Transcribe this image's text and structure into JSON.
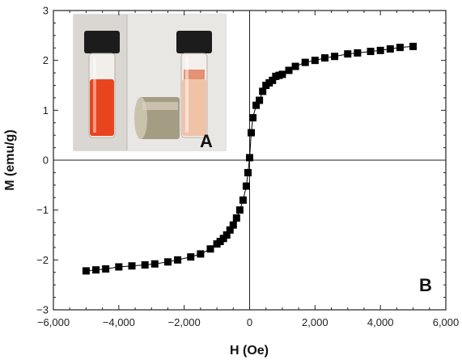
{
  "chart_data": {
    "type": "scatter",
    "xlabel": "H (Oe)",
    "ylabel": "M (emu/g)",
    "xlim": [
      -6000,
      6000
    ],
    "ylim": [
      -3,
      3
    ],
    "xticks": [
      -6000,
      -4000,
      -2000,
      0,
      2000,
      4000,
      6000
    ],
    "xtick_labels": [
      "−6,000",
      "−4,000",
      "−2,000",
      "0",
      "2,000",
      "4,000",
      "6,000"
    ],
    "yticks": [
      -3,
      -2,
      -1,
      0,
      1,
      2,
      3
    ],
    "ytick_labels": [
      "−3",
      "−2",
      "−1",
      "0",
      "1",
      "2",
      "3"
    ],
    "zero_lines": true,
    "marker": "square",
    "marker_color": "#000000",
    "series": [
      {
        "x": [
          -5000,
          -4700,
          -4400,
          -4000,
          -3600,
          -3200,
          -2900,
          -2500,
          -2200,
          -1800,
          -1500,
          -1200,
          -1000,
          -900,
          -800,
          -700,
          -600,
          -500,
          -400,
          -300,
          -200,
          -100,
          -50,
          0,
          50,
          100,
          200,
          300,
          400,
          500,
          600,
          700,
          800,
          900,
          1000,
          1200,
          1400,
          1700,
          2000,
          2300,
          2600,
          3000,
          3300,
          3700,
          4000,
          4300,
          4600,
          5000
        ],
        "y": [
          -2.22,
          -2.2,
          -2.18,
          -2.14,
          -2.12,
          -2.1,
          -2.08,
          -2.04,
          -2.0,
          -1.94,
          -1.88,
          -1.78,
          -1.68,
          -1.63,
          -1.57,
          -1.5,
          -1.4,
          -1.3,
          -1.16,
          -1.0,
          -0.8,
          -0.52,
          -0.25,
          0.05,
          0.55,
          0.85,
          1.1,
          1.2,
          1.38,
          1.5,
          1.55,
          1.6,
          1.68,
          1.7,
          1.72,
          1.8,
          1.88,
          1.96,
          2.0,
          2.05,
          2.08,
          2.13,
          2.15,
          2.18,
          2.2,
          2.23,
          2.26,
          2.28
        ]
      }
    ],
    "panel_labels": [
      "A",
      "B"
    ],
    "inset": {
      "kind": "photo",
      "description_icons": [
        "vial-icon",
        "magnet-icon"
      ]
    }
  }
}
